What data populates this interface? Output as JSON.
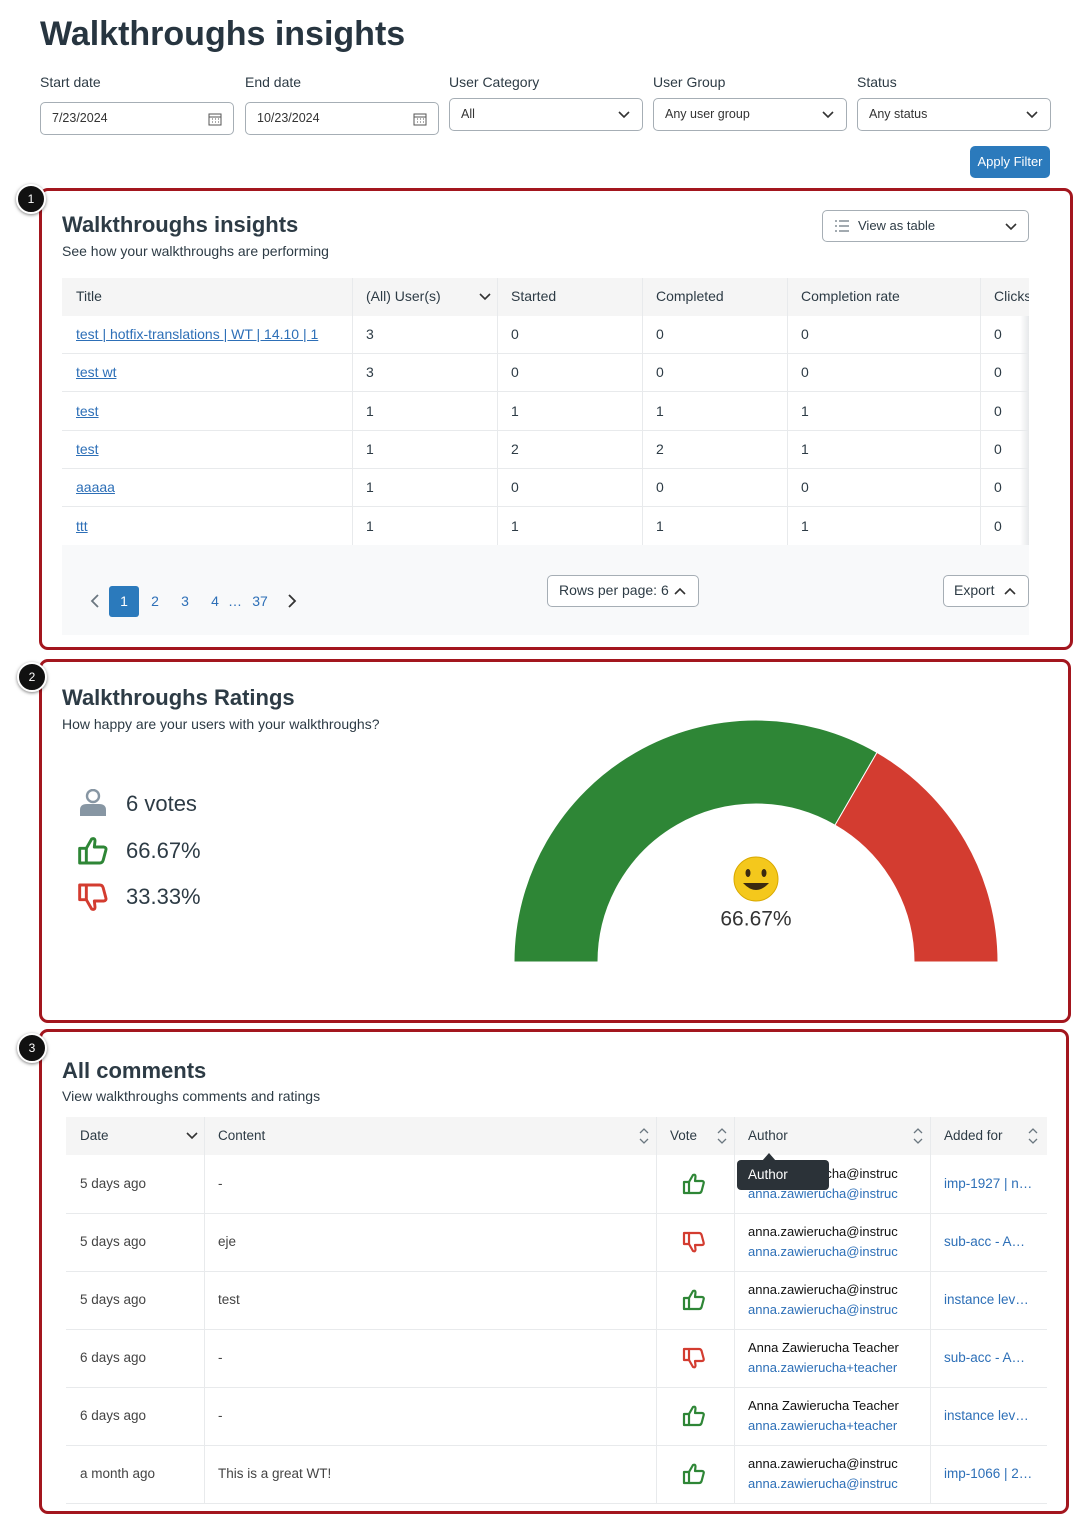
{
  "header": {
    "title": "Walkthroughs insights"
  },
  "filters": [
    {
      "label": "Start date",
      "value": "7/23/2024"
    },
    {
      "label": "End date",
      "value": "10/23/2024"
    },
    {
      "label": "User Category",
      "value": "All"
    },
    {
      "label": "User Group",
      "value": "Any user group"
    },
    {
      "label": "Status",
      "value": "Any status"
    }
  ],
  "apply_button": "Apply Filter",
  "insights": {
    "badge": "1",
    "title": "Walkthroughs insights",
    "subtitle": "See how your walkthroughs are performing",
    "view_select": "View as table",
    "columns": [
      "Title",
      "(All) User(s)",
      "Started",
      "Completed",
      "Completion rate",
      "Clicks"
    ],
    "rows": [
      [
        "test | hotfix-translations | WT | 14.10 | 1",
        3,
        0,
        0,
        0,
        0
      ],
      [
        "test wt",
        3,
        0,
        0,
        0,
        0
      ],
      [
        "test",
        1,
        1,
        1,
        1,
        0
      ],
      [
        "test",
        1,
        2,
        2,
        1,
        0
      ],
      [
        "aaaaa",
        1,
        0,
        0,
        0,
        0
      ],
      [
        "ttt",
        1,
        1,
        1,
        1,
        0
      ]
    ],
    "pagination": {
      "pages": [
        "1",
        "2",
        "3",
        "4",
        "…",
        "37"
      ],
      "current": "1"
    },
    "rows_per_page": "Rows per page: 6",
    "export": "Export"
  },
  "ratings": {
    "badge": "2",
    "title": "Walkthroughs Ratings",
    "subtitle": "How happy are your users with your walkthroughs?",
    "votes": "6 votes",
    "positive": "66.67%",
    "negative": "33.33%",
    "gauge": {
      "positive": 66.67,
      "negative": 33.33,
      "positive_color": "#2e8636",
      "negative_color": "#d33c30",
      "label": "66.67%"
    }
  },
  "comments": {
    "badge": "3",
    "title": "All comments",
    "subtitle": "View walkthroughs comments and ratings",
    "columns": [
      "Date",
      "Content",
      "Vote",
      "Author",
      "Added for"
    ],
    "tooltip": "Author",
    "rows": [
      {
        "date": "5 days ago",
        "content": "-",
        "vote": "up",
        "author": "anna.zawierucha@instruc",
        "email": "anna.zawierucha@instruc",
        "added_for": "imp-1927 | n…"
      },
      {
        "date": "5 days ago",
        "content": "eje",
        "vote": "down",
        "author": "anna.zawierucha@instruc",
        "email": "anna.zawierucha@instruc",
        "added_for": "sub-acc - A…"
      },
      {
        "date": "5 days ago",
        "content": "test",
        "vote": "up",
        "author": "anna.zawierucha@instruc",
        "email": "anna.zawierucha@instruc",
        "added_for": "instance lev…"
      },
      {
        "date": "6 days ago",
        "content": "-",
        "vote": "down",
        "author": "Anna Zawierucha Teacher",
        "email": "anna.zawierucha+teacher",
        "added_for": "sub-acc - A…"
      },
      {
        "date": "6 days ago",
        "content": "-",
        "vote": "up",
        "author": "Anna Zawierucha Teacher",
        "email": "anna.zawierucha+teacher",
        "added_for": "instance lev…"
      },
      {
        "date": "a month ago",
        "content": "This is a great WT!",
        "vote": "up",
        "author": "anna.zawierucha@instruc",
        "email": "anna.zawierucha@instruc",
        "added_for": "imp-1066 | 2…"
      }
    ]
  }
}
